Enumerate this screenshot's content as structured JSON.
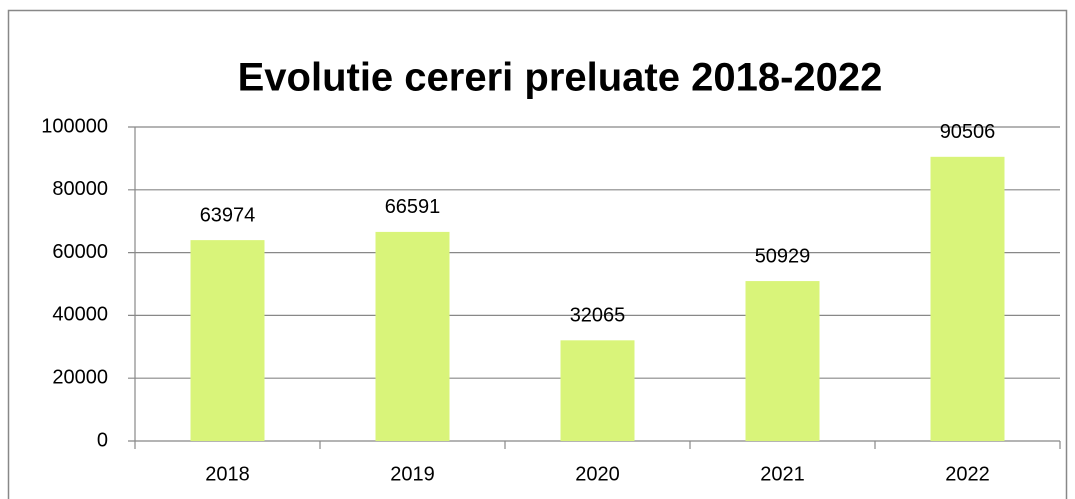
{
  "chart_data": {
    "type": "bar",
    "title": "Evolutie cereri preluate 2018-2022",
    "categories": [
      "2018",
      "2019",
      "2020",
      "2021",
      "2022"
    ],
    "values": [
      63974,
      66591,
      32065,
      50929,
      90506
    ],
    "color": "#d9f47a",
    "ylim": [
      0,
      100000
    ],
    "yticks": [
      0,
      20000,
      40000,
      60000,
      80000,
      100000
    ],
    "grid": true
  }
}
